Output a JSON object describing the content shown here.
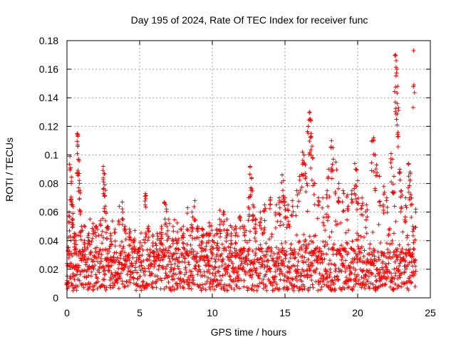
{
  "chart_data": {
    "type": "scatter",
    "title": "Day 195 of 2024, Rate Of TEC Index for receiver func",
    "xlabel": "GPS time / hours",
    "ylabel": "ROTI / TECUs",
    "xlim": [
      0,
      25
    ],
    "ylim": [
      0,
      0.18
    ],
    "xticks": [
      0,
      5,
      10,
      15,
      20,
      25
    ],
    "yticks": [
      0,
      0.02,
      0.04,
      0.06,
      0.08,
      0.1,
      0.12,
      0.14,
      0.16,
      0.18
    ],
    "xtick_labels": [
      "0",
      "5",
      "10",
      "15",
      "20",
      "25"
    ],
    "ytick_labels": [
      "0",
      "0.02",
      "0.04",
      "0.06",
      "0.08",
      "0.1",
      "0.12",
      "0.14",
      "0.16",
      "0.18"
    ],
    "grid": true,
    "marker": "+",
    "color": "#ff0000",
    "data_range": {
      "x_min": 0,
      "x_max": 24,
      "baseline_low": 0.005,
      "baseline_high": 0.035
    },
    "series": [
      {
        "name": "ROTI",
        "points": [
          [
            0.0,
            0.012
          ],
          [
            0.1,
            0.035
          ],
          [
            0.15,
            0.06
          ],
          [
            0.2,
            0.099
          ],
          [
            0.25,
            0.091
          ],
          [
            0.3,
            0.08
          ],
          [
            0.35,
            0.065
          ],
          [
            0.4,
            0.055
          ],
          [
            0.5,
            0.045
          ],
          [
            0.6,
            0.04
          ],
          [
            0.7,
            0.115
          ],
          [
            0.75,
            0.113
          ],
          [
            0.8,
            0.097
          ],
          [
            0.85,
            0.087
          ],
          [
            0.9,
            0.075
          ],
          [
            1.0,
            0.05
          ],
          [
            1.2,
            0.04
          ],
          [
            1.5,
            0.045
          ],
          [
            1.8,
            0.052
          ],
          [
            2.0,
            0.05
          ],
          [
            2.3,
            0.054
          ],
          [
            2.5,
            0.092
          ],
          [
            2.55,
            0.087
          ],
          [
            2.6,
            0.079
          ],
          [
            2.7,
            0.06
          ],
          [
            2.8,
            0.05
          ],
          [
            3.0,
            0.045
          ],
          [
            3.3,
            0.048
          ],
          [
            3.6,
            0.064
          ],
          [
            3.8,
            0.067
          ],
          [
            4.0,
            0.05
          ],
          [
            4.3,
            0.048
          ],
          [
            4.6,
            0.04
          ],
          [
            5.0,
            0.035
          ],
          [
            5.4,
            0.073
          ],
          [
            5.6,
            0.05
          ],
          [
            5.9,
            0.044
          ],
          [
            6.2,
            0.045
          ],
          [
            6.5,
            0.05
          ],
          [
            6.7,
            0.067
          ],
          [
            6.8,
            0.065
          ],
          [
            7.0,
            0.055
          ],
          [
            7.3,
            0.05
          ],
          [
            7.6,
            0.046
          ],
          [
            8.0,
            0.05
          ],
          [
            8.3,
            0.063
          ],
          [
            8.6,
            0.06
          ],
          [
            8.8,
            0.068
          ],
          [
            9.0,
            0.05
          ],
          [
            9.3,
            0.048
          ],
          [
            9.6,
            0.045
          ],
          [
            9.8,
            0.05
          ],
          [
            10.0,
            0.04
          ],
          [
            10.3,
            0.048
          ],
          [
            10.5,
            0.055
          ],
          [
            10.8,
            0.06
          ],
          [
            11.0,
            0.055
          ],
          [
            11.3,
            0.045
          ],
          [
            11.6,
            0.05
          ],
          [
            11.9,
            0.057
          ],
          [
            12.2,
            0.05
          ],
          [
            12.5,
            0.07
          ],
          [
            12.6,
            0.092
          ],
          [
            12.7,
            0.084
          ],
          [
            12.8,
            0.065
          ],
          [
            13.0,
            0.055
          ],
          [
            13.3,
            0.06
          ],
          [
            13.6,
            0.065
          ],
          [
            14.0,
            0.07
          ],
          [
            14.4,
            0.065
          ],
          [
            14.6,
            0.07
          ],
          [
            14.8,
            0.086
          ],
          [
            14.9,
            0.082
          ],
          [
            15.0,
            0.07
          ],
          [
            15.2,
            0.065
          ],
          [
            15.5,
            0.068
          ],
          [
            15.8,
            0.075
          ],
          [
            16.0,
            0.085
          ],
          [
            16.2,
            0.102
          ],
          [
            16.3,
            0.1
          ],
          [
            16.4,
            0.093
          ],
          [
            16.5,
            0.08
          ],
          [
            16.6,
            0.12
          ],
          [
            16.7,
            0.13
          ],
          [
            16.75,
            0.125
          ],
          [
            16.8,
            0.115
          ],
          [
            16.9,
            0.098
          ],
          [
            17.0,
            0.08
          ],
          [
            17.3,
            0.07
          ],
          [
            17.6,
            0.07
          ],
          [
            17.9,
            0.075
          ],
          [
            18.0,
            0.09
          ],
          [
            18.2,
            0.11
          ],
          [
            18.3,
            0.105
          ],
          [
            18.5,
            0.095
          ],
          [
            18.7,
            0.08
          ],
          [
            19.0,
            0.075
          ],
          [
            19.3,
            0.072
          ],
          [
            19.6,
            0.075
          ],
          [
            19.8,
            0.094
          ],
          [
            19.9,
            0.09
          ],
          [
            20.0,
            0.082
          ],
          [
            20.3,
            0.07
          ],
          [
            20.6,
            0.065
          ],
          [
            21.0,
            0.11
          ],
          [
            21.1,
            0.112
          ],
          [
            21.2,
            0.1
          ],
          [
            21.3,
            0.093
          ],
          [
            21.5,
            0.085
          ],
          [
            21.8,
            0.078
          ],
          [
            22.0,
            0.07
          ],
          [
            22.3,
            0.101
          ],
          [
            22.4,
            0.097
          ],
          [
            22.5,
            0.085
          ],
          [
            22.6,
            0.17
          ],
          [
            22.65,
            0.166
          ],
          [
            22.7,
            0.16
          ],
          [
            22.75,
            0.148
          ],
          [
            22.8,
            0.133
          ],
          [
            22.9,
            0.09
          ],
          [
            23.0,
            0.075
          ],
          [
            23.3,
            0.07
          ],
          [
            23.5,
            0.094
          ],
          [
            23.6,
            0.088
          ],
          [
            23.7,
            0.07
          ],
          [
            23.8,
            0.05
          ],
          [
            23.85,
            0.173
          ],
          [
            24.0,
            0.062
          ]
        ]
      }
    ]
  }
}
